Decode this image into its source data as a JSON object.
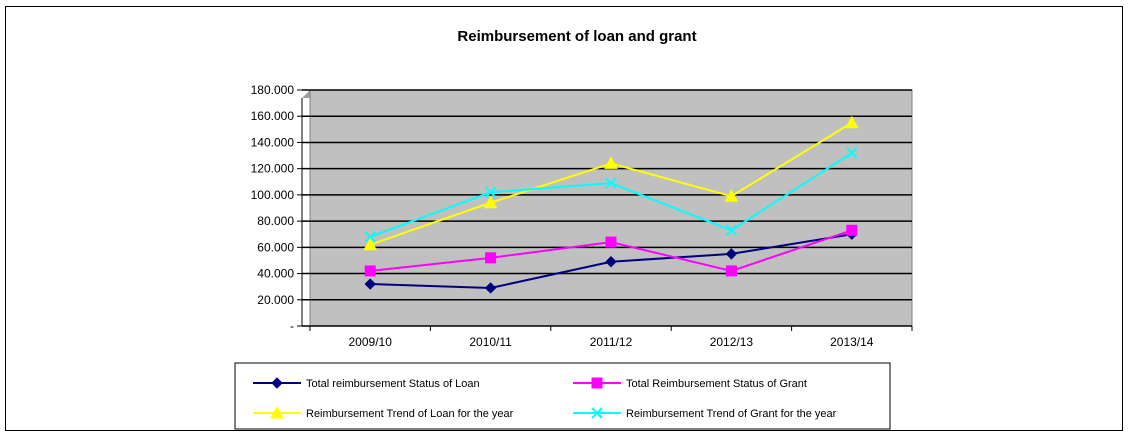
{
  "chart_data": {
    "type": "line",
    "title": "Reimbursement of loan and grant",
    "xlabel": "",
    "ylabel": "",
    "categories": [
      "2009/10",
      "2010/11",
      "2011/12",
      "2012/13",
      "2013/14"
    ],
    "ylim": [
      0,
      180
    ],
    "y_ticks": [
      "-",
      "20.000",
      "40.000",
      "60.000",
      "80.000",
      "100.000",
      "120.000",
      "140.000",
      "160.000",
      "180.000"
    ],
    "grid": true,
    "plot_background": "#c0c0c0",
    "legend_position": "bottom",
    "series": [
      {
        "name": "Total reimbursement Status of Loan",
        "color": "#000080",
        "marker": "diamond",
        "values": [
          32,
          29,
          49,
          55,
          70
        ]
      },
      {
        "name": "Total Reimbursement Status of Grant",
        "color": "#ff00ff",
        "marker": "square",
        "values": [
          42,
          52,
          64,
          42,
          73
        ]
      },
      {
        "name": "Reimbursement Trend of Loan for the year",
        "color": "#ffff00",
        "marker": "triangle",
        "values": [
          62,
          94,
          124,
          99,
          155
        ]
      },
      {
        "name": "Reimbursement Trend of Grant for the year",
        "color": "#00ffff",
        "marker": "x",
        "values": [
          68,
          102,
          109,
          73,
          132
        ]
      }
    ]
  }
}
